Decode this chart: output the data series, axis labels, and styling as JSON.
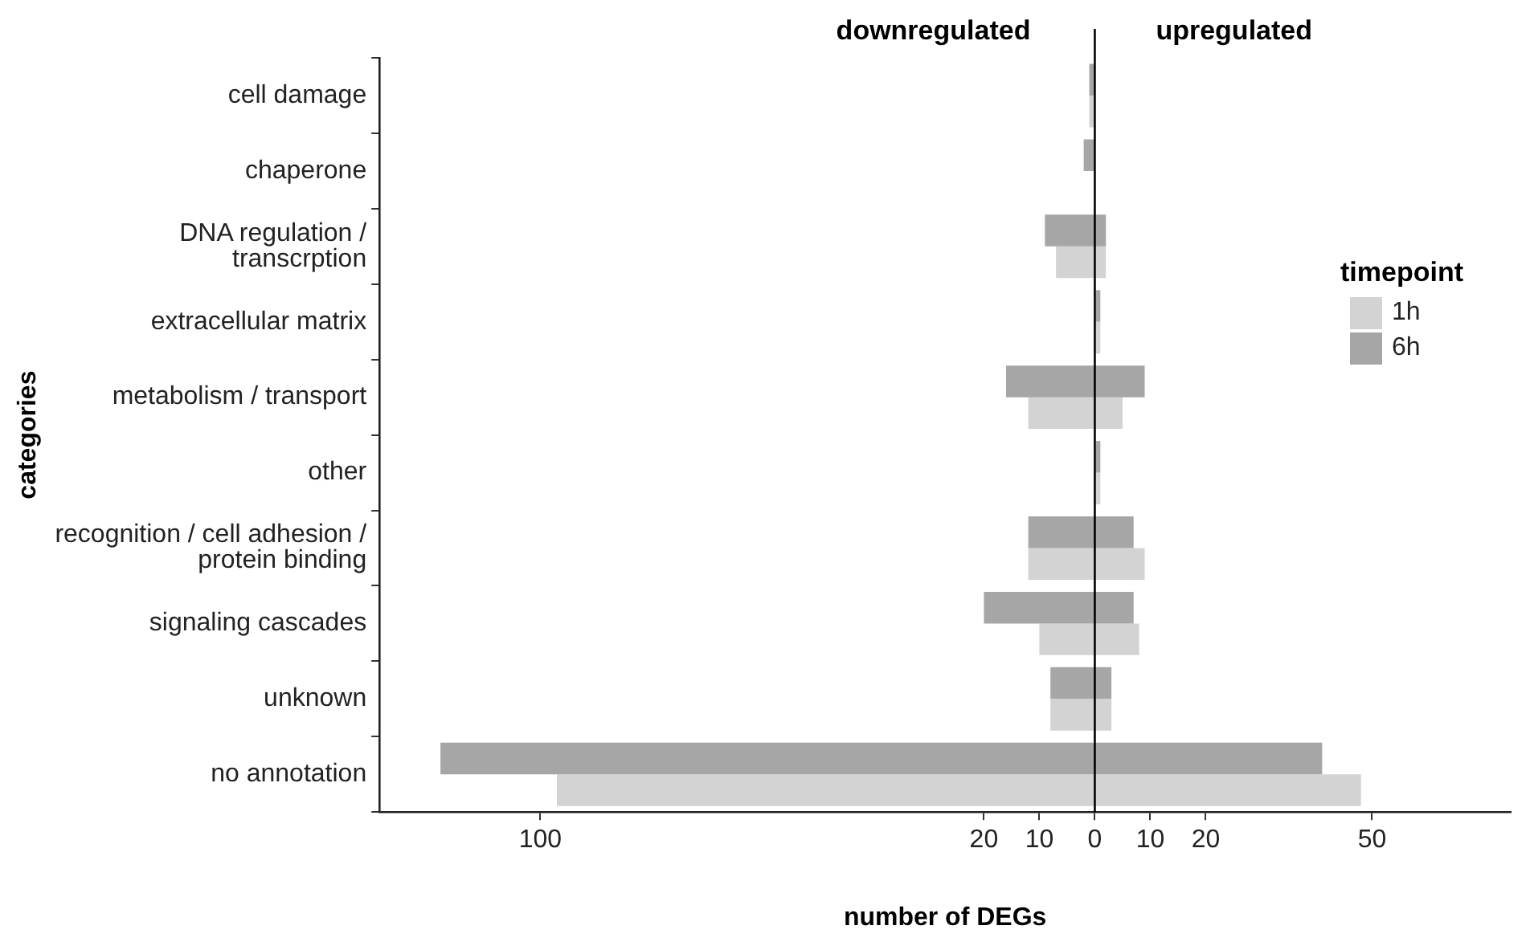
{
  "chart_data": {
    "type": "bar",
    "orientation": "horizontal",
    "xlabel": "number of DEGs",
    "ylabel": "categories",
    "legend_title": "timepoint",
    "legend": "right",
    "annotations": [
      "downregulated",
      "upregulated"
    ],
    "categories": [
      "cell damage",
      "chaperone",
      "DNA regulation /\ntranscrption",
      "extracellular matrix",
      "metabolism / transport",
      "other",
      "recognition / cell adhesion /\nprotein binding",
      "signaling cascades",
      "unknown",
      "no annotation"
    ],
    "series": [
      {
        "name": "1h",
        "color": "#d3d3d3",
        "base": [
          -1,
          null,
          -7,
          0,
          -12,
          0,
          -12,
          -10,
          -8,
          -97
        ],
        "values": [
          1,
          null,
          9,
          1,
          17,
          1,
          21,
          18,
          11,
          145
        ]
      },
      {
        "name": "6h",
        "color": "#a6a6a6",
        "base": [
          -1,
          -2,
          -9,
          0,
          -16,
          0,
          -12,
          -20,
          -8,
          -118
        ],
        "values": [
          1,
          2,
          11,
          1,
          25,
          1,
          19,
          27,
          11,
          159
        ]
      }
    ],
    "xlim": [
      -129,
      75
    ],
    "xticks": [
      {
        "value": -100,
        "label": "100"
      },
      {
        "value": -20,
        "label": "20"
      },
      {
        "value": -10,
        "label": "10"
      },
      0,
      10,
      20,
      50
    ],
    "ref_lines": [
      {
        "axis": "x",
        "value": 0,
        "color": "#000000"
      }
    ]
  }
}
